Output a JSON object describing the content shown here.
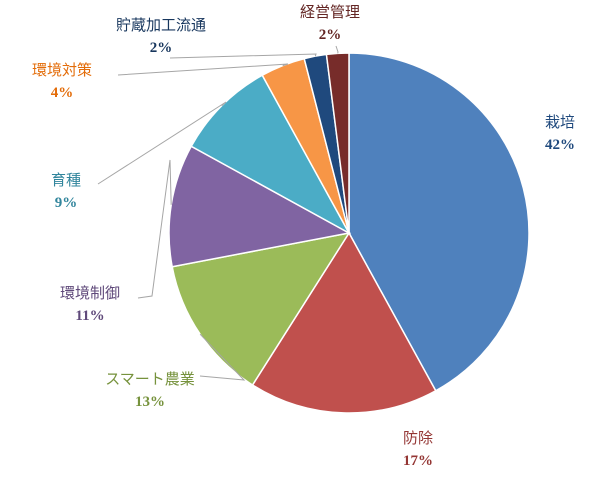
{
  "chart_data": {
    "type": "pie",
    "start_angle_deg": 0,
    "direction": "clockwise",
    "slices": [
      {
        "label": "栽培",
        "value": 42,
        "value_label": "42%",
        "color": "#4f81bd",
        "label_color": "#1f497d"
      },
      {
        "label": "防除",
        "value": 17,
        "value_label": "17%",
        "color": "#c0504d",
        "label_color": "#943634"
      },
      {
        "label": "スマート農業",
        "value": 13,
        "value_label": "13%",
        "color": "#9bbb59",
        "label_color": "#76923c"
      },
      {
        "label": "環境制御",
        "value": 11,
        "value_label": "11%",
        "color": "#8064a2",
        "label_color": "#5f497a"
      },
      {
        "label": "育種",
        "value": 9,
        "value_label": "9%",
        "color": "#4bacc6",
        "label_color": "#31859c"
      },
      {
        "label": "環境対策",
        "value": 4,
        "value_label": "4%",
        "color": "#f79646",
        "label_color": "#e36c09"
      },
      {
        "label": "貯蔵加工流通",
        "value": 2,
        "value_label": "2%",
        "color": "#1f497d",
        "label_color": "#17365d"
      },
      {
        "label": "経営管理",
        "value": 2,
        "value_label": "2%",
        "color": "#772c2a",
        "label_color": "#632523"
      }
    ],
    "legend": "none"
  }
}
